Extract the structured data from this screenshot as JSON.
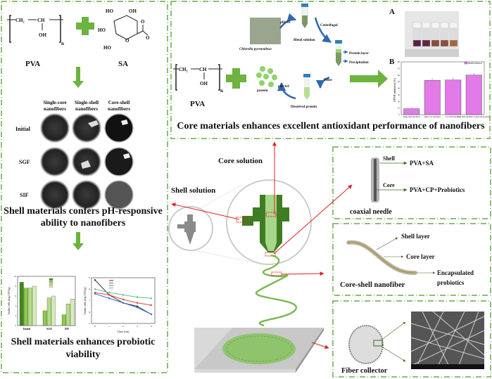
{
  "left_panel": {
    "pva_formula": {
      "ch2": "CH₂",
      "ch": "CH",
      "oh": "OH",
      "n": "n"
    },
    "sa_formula": {
      "ho1": "HO",
      "oh1": "OH",
      "ho2": "HO",
      "ho3": "HO",
      "o_ring": "O",
      "o1": "O",
      "o2": "O"
    },
    "pva_label": "PVA",
    "sa_label": "SA",
    "column_headers": [
      [
        "Single-core",
        "nanofibers"
      ],
      [
        "Single-shell",
        "nanofibers"
      ],
      [
        "Core-shell",
        "nanofibers"
      ]
    ],
    "row_labels": [
      "Initial",
      "SGF",
      "SIF"
    ],
    "title_1": [
      "Shell materials confers pH-responsive",
      "ability to nanofibers"
    ],
    "bar_chart": {
      "ylabel": "Viable cells (log CFU/g)",
      "categories": [
        "Initial",
        "SGF",
        "SIF"
      ],
      "y_ticks": [
        "0",
        "2",
        "4",
        "6",
        "8",
        "10"
      ],
      "colors": [
        "#3f8a1a",
        "#8cc84b",
        "#b5dd85",
        "#d6edb8"
      ]
    },
    "line_chart": {
      "ylabel": "Viable cells (log CFU/g)",
      "xlabel": "Time (wk)",
      "x_ticks": [
        "0",
        "1",
        "2",
        "3",
        "4"
      ],
      "y_ticks": [
        "5",
        "6",
        "7",
        "8",
        "9"
      ],
      "colors": [
        "#333333",
        "#e8423f",
        "#3a6fd0",
        "#58c48a"
      ]
    },
    "title_2": [
      "Shell materials enhances probiotic",
      "viability"
    ]
  },
  "top_panel": {
    "pva_formula": {
      "ch2": "CH₂",
      "ch": "CH",
      "oh": "OH",
      "n": "n"
    },
    "pva_label": "PVA",
    "chlorella_caption": "Chlorella pyrenoidosa",
    "ph10": "pH=10",
    "blend_solution": "Blend solution",
    "centrifugal": "Centrifugal",
    "protein_layer": "Protein layer",
    "precipitation": "Precipitation",
    "filter": "Filter",
    "dissolved_protein": "Dissolved protein",
    "ph4": "pH=4.0",
    "protein": "protein",
    "label_a": "A",
    "label_b": "B",
    "dpph_chart": {
      "type": "bar",
      "ylabel": "DPPH inhibition (%)",
      "legend": "DPPH inhibition",
      "categories": [
        "Single-shell nanofibers",
        "Single-core nanofibers",
        "Core-shell nanofibers",
        "Core-shell nanofibers loaded with probiotics"
      ],
      "values": [
        9,
        52,
        52.5,
        60
      ],
      "letters": [
        "c",
        "b",
        "b",
        "a"
      ],
      "y_ticks": [
        "0",
        "10",
        "20",
        "30",
        "40",
        "50",
        "60",
        "70",
        "80"
      ],
      "ylim": [
        0,
        80
      ],
      "color": "#e27ae8"
    },
    "title": "Core materials enhances excellent antioxidant performance of nanofibers"
  },
  "center": {
    "core_solution": "Core solution",
    "shell_solution": "Shell solution"
  },
  "needle_panel": {
    "shell": "Shell",
    "core": "Core",
    "shell_material": "PVA+SA",
    "core_material": "PVA+CP+Probiotics",
    "caption": "coaxial needle"
  },
  "nanofiber_panel": {
    "shell_layer": "Shell layer",
    "core_layer": "Core layer",
    "encapsulated": [
      "Encapsulated",
      "probiotics"
    ],
    "caption": "Core-shell nanofiber"
  },
  "collector_panel": {
    "caption": "Fiber collector"
  },
  "colors": {
    "border_green": "#6aa84f",
    "arrow_green": "#6cb33f",
    "dark_green": "#3d7a23",
    "light_green": "#a8d68a",
    "red": "#e02020"
  }
}
